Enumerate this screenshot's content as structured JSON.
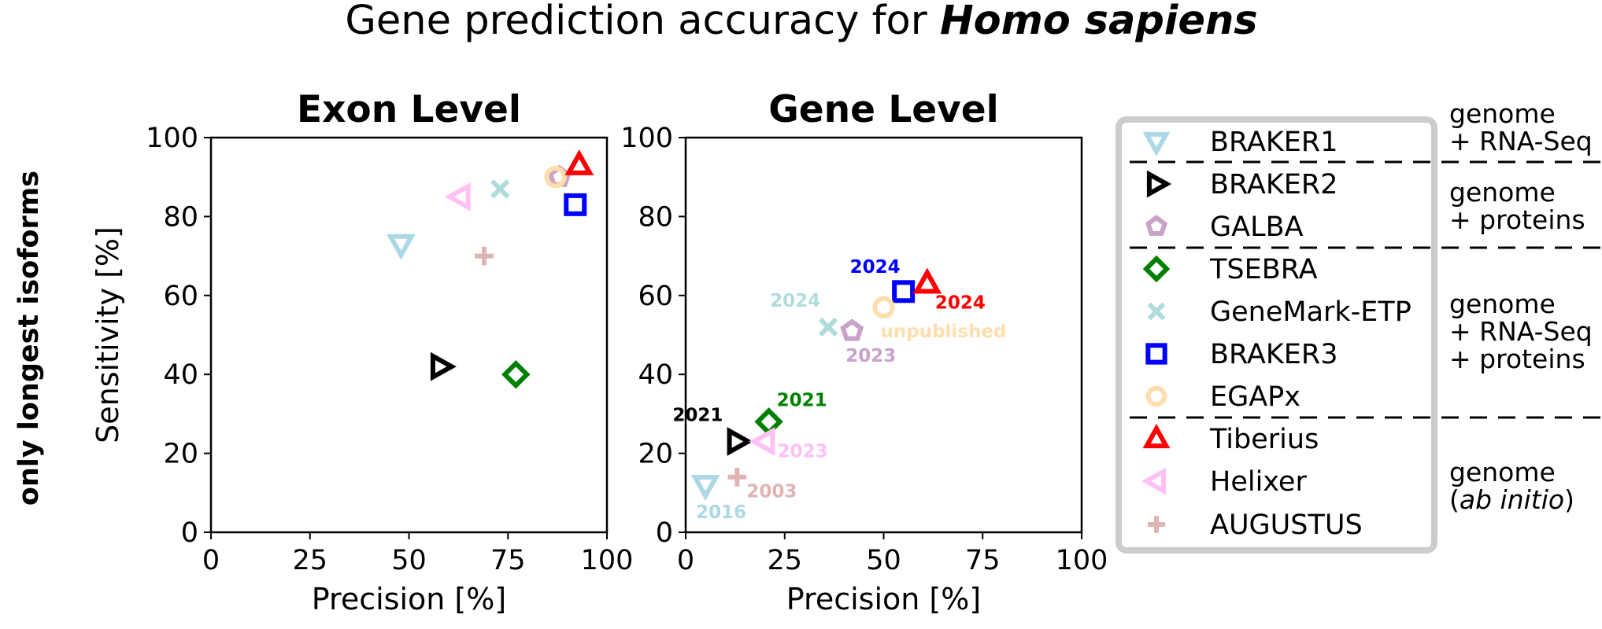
{
  "title": {
    "prefix": "Gene prediction accuracy for ",
    "species": "Homo sapiens"
  },
  "row_label": "only longest isoforms",
  "colors": {
    "BRAKER1": "#add8e6",
    "BRAKER2": "#000000",
    "GALBA": "#c8a2c8",
    "TSEBRA": "#008000",
    "GeneMark-ETP": "#b0dcdc",
    "BRAKER3": "#0000ff",
    "EGAPx": "#ffdead",
    "Tiberius": "#ff0000",
    "Helixer": "#ffc0f5",
    "AUGUSTUS": "#e0b4b4"
  },
  "legend": {
    "entries": [
      {
        "name": "BRAKER1",
        "marker": "triangle-down"
      },
      {
        "name": "BRAKER2",
        "marker": "triangle-right"
      },
      {
        "name": "GALBA",
        "marker": "pentagon"
      },
      {
        "name": "TSEBRA",
        "marker": "diamond"
      },
      {
        "name": "GeneMark-ETP",
        "marker": "x"
      },
      {
        "name": "BRAKER3",
        "marker": "square"
      },
      {
        "name": "EGAPx",
        "marker": "circle"
      },
      {
        "name": "Tiberius",
        "marker": "triangle-up"
      },
      {
        "name": "Helixer",
        "marker": "triangle-left"
      },
      {
        "name": "AUGUSTUS",
        "marker": "plus"
      }
    ],
    "groups": [
      {
        "lines": [
          "genome",
          "+ RNA-Seq"
        ]
      },
      {
        "lines": [
          "genome",
          "+ proteins"
        ]
      },
      {
        "lines": [
          "genome",
          "+ RNA-Seq",
          "+ proteins"
        ]
      },
      {
        "lines": [
          "genome",
          "(ab initio)"
        ]
      }
    ]
  },
  "chart_data": [
    {
      "type": "scatter",
      "title": "Exon Level",
      "xlabel": "Precision [%]",
      "ylabel": "Sensitivity [%]",
      "xlim": [
        0,
        100
      ],
      "ylim": [
        0,
        100
      ],
      "xticks": [
        "0",
        "25",
        "50",
        "75",
        "100"
      ],
      "yticks": [
        "0",
        "20",
        "40",
        "60",
        "80",
        "100"
      ],
      "grid": false,
      "points": [
        {
          "series": "BRAKER1",
          "x": 48,
          "y": 73
        },
        {
          "series": "BRAKER2",
          "x": 58,
          "y": 42
        },
        {
          "series": "GALBA",
          "x": 88,
          "y": 90
        },
        {
          "series": "TSEBRA",
          "x": 77,
          "y": 40
        },
        {
          "series": "GeneMark-ETP",
          "x": 73,
          "y": 87
        },
        {
          "series": "BRAKER3",
          "x": 92,
          "y": 83
        },
        {
          "series": "EGAPx",
          "x": 87,
          "y": 90
        },
        {
          "series": "Tiberius",
          "x": 93,
          "y": 93
        },
        {
          "series": "Helixer",
          "x": 63,
          "y": 85
        },
        {
          "series": "AUGUSTUS",
          "x": 69,
          "y": 70
        }
      ]
    },
    {
      "type": "scatter",
      "title": "Gene Level",
      "xlabel": "Precision [%]",
      "ylabel": "",
      "xlim": [
        0,
        100
      ],
      "ylim": [
        0,
        100
      ],
      "xticks": [
        "0",
        "25",
        "50",
        "75",
        "100"
      ],
      "yticks": [
        "0",
        "20",
        "40",
        "60",
        "80",
        "100"
      ],
      "grid": false,
      "points": [
        {
          "series": "BRAKER1",
          "x": 5,
          "y": 12,
          "label": "2016"
        },
        {
          "series": "BRAKER2",
          "x": 13,
          "y": 23,
          "label": "2021"
        },
        {
          "series": "GALBA",
          "x": 42,
          "y": 51,
          "label": "2023"
        },
        {
          "series": "TSEBRA",
          "x": 21,
          "y": 28,
          "label": "2021"
        },
        {
          "series": "GeneMark-ETP",
          "x": 36,
          "y": 52,
          "label": "2024"
        },
        {
          "series": "BRAKER3",
          "x": 55,
          "y": 61,
          "label": "2024"
        },
        {
          "series": "EGAPx",
          "x": 50,
          "y": 57,
          "label": "unpublished"
        },
        {
          "series": "Tiberius",
          "x": 61,
          "y": 63,
          "label": "2024"
        },
        {
          "series": "Helixer",
          "x": 20,
          "y": 23,
          "label": "2023"
        },
        {
          "series": "AUGUSTUS",
          "x": 13,
          "y": 14,
          "label": "2003"
        }
      ]
    }
  ]
}
